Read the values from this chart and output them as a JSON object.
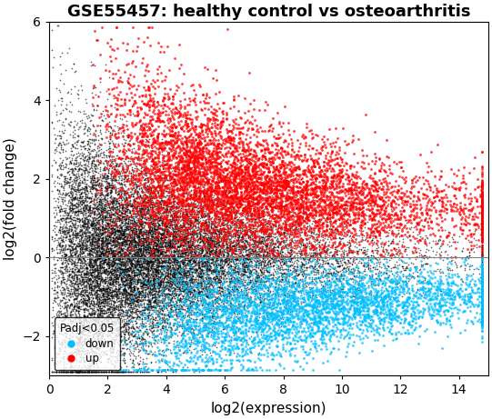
{
  "title": "GSE55457: healthy control vs osteoarthritis",
  "xlabel": "log2(expression)",
  "ylabel": "log2(fold change)",
  "xlim": [
    0,
    15
  ],
  "ylim": [
    -3,
    6
  ],
  "xticks": [
    0,
    2,
    4,
    6,
    8,
    10,
    12,
    14
  ],
  "yticks": [
    -2,
    0,
    2,
    4,
    6
  ],
  "hline_y": 0,
  "hline_color": "#808080",
  "color_black": "#000000",
  "color_up": "#FF0000",
  "color_down": "#00BFFF",
  "legend_title": "Padj<0.05",
  "legend_down": "down",
  "legend_up": "up",
  "n_black": 20000,
  "n_up": 7000,
  "n_down": 4500,
  "point_size_black": 1.5,
  "point_size_colored": 4,
  "seed": 42,
  "background_color": "#FFFFFF",
  "title_fontsize": 13,
  "axis_fontsize": 11
}
